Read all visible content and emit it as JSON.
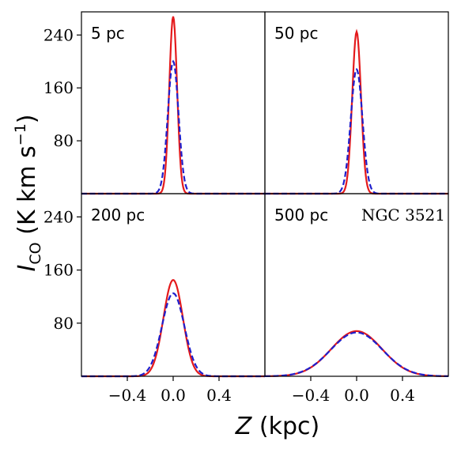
{
  "figure": {
    "ylabel_main": "I",
    "ylabel_sub": "CO",
    "ylabel_unit_open": " (K km s",
    "ylabel_unit_sup": "−1",
    "ylabel_unit_close": ")",
    "xlabel_var": "Z",
    "xlabel_unit": " (kpc)"
  },
  "colors": {
    "model": "#e41a1c",
    "observed": "#1f1fcc"
  },
  "chart_data": [
    {
      "type": "line",
      "panel_label": "5 pc",
      "annotation": "",
      "xlim": [
        -0.8,
        0.8
      ],
      "ylim": [
        0,
        275
      ],
      "yticks": [
        80,
        160,
        240
      ],
      "xticks": [
        -0.4,
        0.0,
        0.4
      ],
      "series": [
        {
          "style": "solid",
          "color": "#e41a1c",
          "peak": 268,
          "fwhm": 0.08
        },
        {
          "style": "dashed",
          "color": "#1f1fcc",
          "peak": 200,
          "fwhm": 0.11
        }
      ]
    },
    {
      "type": "line",
      "panel_label": "50 pc",
      "annotation": "",
      "xlim": [
        -0.8,
        0.8
      ],
      "ylim": [
        0,
        275
      ],
      "yticks": [
        80,
        160,
        240
      ],
      "xticks": [
        -0.4,
        0.0,
        0.4
      ],
      "series": [
        {
          "style": "solid",
          "color": "#e41a1c",
          "peak": 245,
          "fwhm": 0.09
        },
        {
          "style": "dashed",
          "color": "#1f1fcc",
          "peak": 188,
          "fwhm": 0.12
        }
      ]
    },
    {
      "type": "line",
      "panel_label": "200 pc",
      "annotation": "",
      "xlim": [
        -0.8,
        0.8
      ],
      "ylim": [
        0,
        275
      ],
      "yticks": [
        80,
        160,
        240
      ],
      "xticks": [
        -0.4,
        0.0,
        0.4
      ],
      "series": [
        {
          "style": "solid",
          "color": "#e41a1c",
          "peak": 145,
          "fwhm": 0.2
        },
        {
          "style": "dashed",
          "color": "#1f1fcc",
          "peak": 125,
          "fwhm": 0.23
        }
      ]
    },
    {
      "type": "line",
      "panel_label": "500 pc",
      "annotation": "NGC 3521",
      "xlim": [
        -0.8,
        0.8
      ],
      "ylim": [
        0,
        275
      ],
      "yticks": [
        80,
        160,
        240
      ],
      "xticks": [
        -0.4,
        0.0,
        0.4
      ],
      "series": [
        {
          "style": "solid",
          "color": "#e41a1c",
          "peak": 68,
          "fwhm": 0.52
        },
        {
          "style": "dashed",
          "color": "#1f1fcc",
          "peak": 66,
          "fwhm": 0.53
        }
      ]
    }
  ]
}
